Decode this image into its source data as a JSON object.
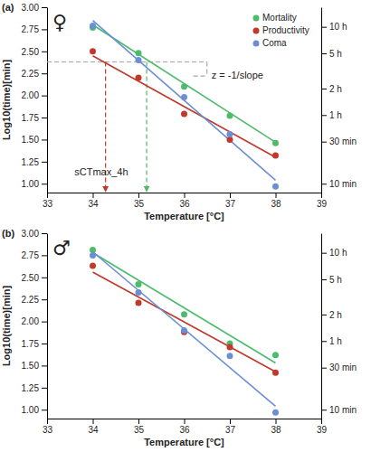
{
  "chart_data": [
    {
      "type": "scatter",
      "panel_label": "(a)",
      "symbol": "♀",
      "x_label": "Temperature [°C]",
      "y_label": "Log10(time)[min]",
      "x": [
        34,
        35,
        36,
        37,
        38
      ],
      "fit_x": [
        34,
        38
      ],
      "series": [
        {
          "name": "Mortality",
          "color": "#4cbb6c",
          "values": [
            2.77,
            2.48,
            2.1,
            1.77,
            1.46
          ],
          "fit": [
            2.8,
            1.47
          ]
        },
        {
          "name": "Productivity",
          "color": "#c0392b",
          "values": [
            2.5,
            2.2,
            1.79,
            1.5,
            1.32
          ],
          "fit": [
            2.45,
            1.3
          ]
        },
        {
          "name": "Coma",
          "color": "#6b8fd4",
          "values": [
            2.79,
            2.4,
            1.98,
            1.56,
            0.97
          ],
          "fit": [
            2.85,
            1.04
          ]
        }
      ],
      "xlim": [
        33,
        39
      ],
      "xticks": [
        33,
        34,
        35,
        36,
        37,
        38,
        39
      ],
      "ylim": [
        0.9,
        3.0
      ],
      "yticks": [
        {
          "value": 1,
          "label": "1.00"
        },
        {
          "value": 1.25,
          "label": "1.25"
        },
        {
          "value": 1.5,
          "label": "1.50"
        },
        {
          "value": 1.75,
          "label": "1.75"
        },
        {
          "value": 2,
          "label": "2.00"
        },
        {
          "value": 2.25,
          "label": "2.25"
        },
        {
          "value": 2.5,
          "label": "2.50"
        },
        {
          "value": 2.75,
          "label": "2.75"
        },
        {
          "value": 3,
          "label": "3.00"
        }
      ],
      "y2lim": [
        0.9,
        3.0
      ],
      "y2ticks": [
        {
          "value": 2.778,
          "label": "10 h"
        },
        {
          "value": 2.477,
          "label": "5 h"
        },
        {
          "value": 2.079,
          "label": "2 h"
        },
        {
          "value": 1.778,
          "label": "1 h"
        },
        {
          "value": 1.477,
          "label": "30 min"
        },
        {
          "value": 1,
          "label": "10 min"
        }
      ],
      "legend": "top-right",
      "marker": "circle",
      "guide_y": 2.38,
      "guide_xlim": [
        33,
        36.5
      ],
      "guide_drops": [
        {
          "x": 34.28,
          "color": "#c0392b"
        },
        {
          "x": 35.18,
          "color": "#4cbb6c"
        }
      ],
      "guide_step": {
        "x": [
          36.2,
          36.5
        ],
        "y": 2.22
      },
      "annotations": [
        {
          "text": "sCTmax_4h",
          "x": 33.6,
          "y": 1.12
        },
        {
          "text": "z = -1/slope",
          "x": 36.6,
          "y": 2.22
        }
      ]
    },
    {
      "type": "scatter",
      "panel_label": "(b)",
      "symbol": "♂",
      "x_label": "Temperature [°C]",
      "y_label": "Log10(time)[min]",
      "x": [
        34,
        35,
        36,
        37,
        38
      ],
      "fit_x": [
        34,
        38
      ],
      "series": [
        {
          "color": "#4cbb6c",
          "values": [
            2.81,
            2.42,
            2.08,
            1.75,
            1.62
          ],
          "fit": [
            2.78,
            1.53
          ]
        },
        {
          "color": "#c0392b",
          "values": [
            2.63,
            2.21,
            1.88,
            1.71,
            1.42
          ],
          "fit": [
            2.56,
            1.43
          ]
        },
        {
          "color": "#6b8fd4",
          "values": [
            2.75,
            2.33,
            1.9,
            1.61,
            0.97
          ],
          "fit": [
            2.79,
            1.04
          ]
        }
      ],
      "xlim": [
        33,
        39
      ],
      "xticks": [
        33,
        34,
        35,
        36,
        37,
        38,
        39
      ],
      "ylim": [
        0.9,
        3.0
      ],
      "yticks": [
        {
          "value": 1,
          "label": "1.00"
        },
        {
          "value": 1.25,
          "label": "1.25"
        },
        {
          "value": 1.5,
          "label": "1.50"
        },
        {
          "value": 1.75,
          "label": "1.75"
        },
        {
          "value": 2,
          "label": "2.00"
        },
        {
          "value": 2.25,
          "label": "2.25"
        },
        {
          "value": 2.5,
          "label": "2.50"
        },
        {
          "value": 2.75,
          "label": "2.75"
        },
        {
          "value": 3,
          "label": "3.00"
        }
      ],
      "y2lim": [
        0.9,
        3.0
      ],
      "y2ticks": [
        {
          "value": 2.778,
          "label": "10 h"
        },
        {
          "value": 2.477,
          "label": "5 h"
        },
        {
          "value": 2.079,
          "label": "2 h"
        },
        {
          "value": 1.778,
          "label": "1 h"
        },
        {
          "value": 1.477,
          "label": "30 min"
        },
        {
          "value": 1,
          "label": "10 min"
        }
      ],
      "marker": "circle"
    }
  ]
}
